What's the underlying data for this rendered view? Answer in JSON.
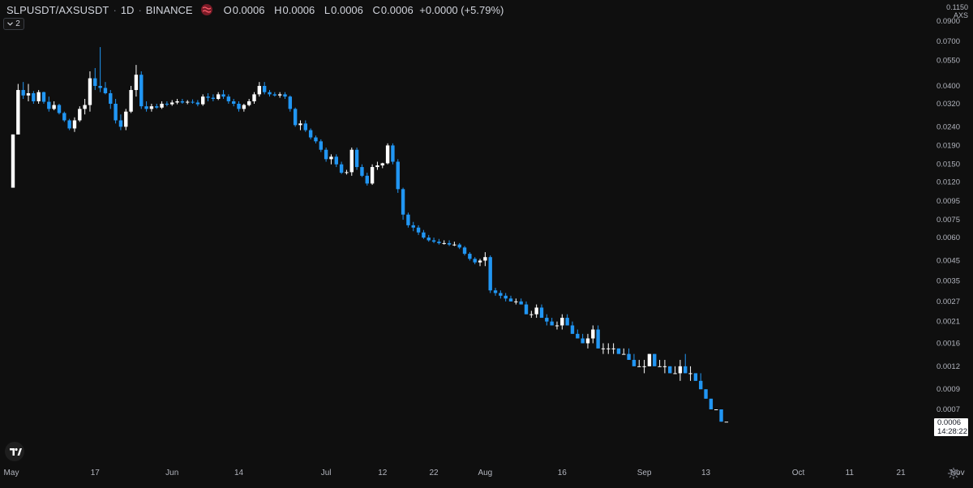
{
  "header": {
    "symbol": "SLPUSDT/AXSUSDT",
    "interval": "1D",
    "exchange": "BINANCE",
    "separator": "·",
    "ohlc": {
      "o_label": "O",
      "o_value": "0.0006",
      "h_label": "H",
      "h_value": "0.0006",
      "l_label": "L",
      "l_value": "0.0006",
      "c_label": "C",
      "c_value": "0.0006",
      "change": "+0.0000 (+5.79%)"
    },
    "collapse_count": "2"
  },
  "price_axis": {
    "unit_top": "0.1150",
    "unit_label": "AXS",
    "current_price": "0.0006",
    "countdown": "14:28:22"
  },
  "colors": {
    "background": "#0f0f0f",
    "up": "#ffffff",
    "down": "#2196f3",
    "text": "#d1d4dc"
  },
  "icons": {
    "market": "market-status-icon",
    "logo": "tradingview-logo-icon",
    "settings": "gear-icon",
    "collapse": "chevron-down-icon"
  },
  "chart_data": {
    "type": "candlestick",
    "title": "SLPUSDT/AXSUSDT",
    "subtitle": "1D · BINANCE",
    "xlabel": "",
    "ylabel": "AXS",
    "y_scale": "log",
    "grid": false,
    "legend": "top-left",
    "y_ticks": [
      "0.0900",
      "0.0700",
      "0.0550",
      "0.0400",
      "0.0320",
      "0.0240",
      "0.0190",
      "0.0150",
      "0.0120",
      "0.0095",
      "0.0075",
      "0.0060",
      "0.0045",
      "0.0035",
      "0.0027",
      "0.0021",
      "0.0016",
      "0.0012",
      "0.0009",
      "0.0007"
    ],
    "x_ticks": [
      {
        "label": "May",
        "day": 0
      },
      {
        "label": "17",
        "day": 16
      },
      {
        "label": "Jun",
        "day": 31
      },
      {
        "label": "14",
        "day": 44
      },
      {
        "label": "Jul",
        "day": 61
      },
      {
        "label": "12",
        "day": 72
      },
      {
        "label": "22",
        "day": 82
      },
      {
        "label": "Aug",
        "day": 92
      },
      {
        "label": "16",
        "day": 107
      },
      {
        "label": "Sep",
        "day": 123
      },
      {
        "label": "13",
        "day": 135
      },
      {
        "label": "Oct",
        "day": 153
      },
      {
        "label": "11",
        "day": 163
      },
      {
        "label": "21",
        "day": 173
      },
      {
        "label": "Nov",
        "day": 184
      }
    ],
    "first_date": "May 1",
    "candles": [
      [
        0.0112,
        0.0218,
        0.0112,
        0.0218
      ],
      [
        0.0218,
        0.041,
        0.0218,
        0.038
      ],
      [
        0.038,
        0.042,
        0.034,
        0.0355
      ],
      [
        0.0355,
        0.041,
        0.033,
        0.0365
      ],
      [
        0.0365,
        0.0375,
        0.032,
        0.033
      ],
      [
        0.033,
        0.038,
        0.032,
        0.037
      ],
      [
        0.037,
        0.0372,
        0.032,
        0.0328
      ],
      [
        0.0328,
        0.035,
        0.029,
        0.03
      ],
      [
        0.03,
        0.033,
        0.0295,
        0.0315
      ],
      [
        0.0315,
        0.032,
        0.028,
        0.0285
      ],
      [
        0.0285,
        0.029,
        0.0255,
        0.026
      ],
      [
        0.026,
        0.0265,
        0.023,
        0.0235
      ],
      [
        0.0235,
        0.027,
        0.0225,
        0.026
      ],
      [
        0.026,
        0.031,
        0.0255,
        0.03
      ],
      [
        0.03,
        0.034,
        0.028,
        0.0315
      ],
      [
        0.0315,
        0.048,
        0.029,
        0.044
      ],
      [
        0.044,
        0.05,
        0.038,
        0.04
      ],
      [
        0.04,
        0.065,
        0.037,
        0.039
      ],
      [
        0.039,
        0.042,
        0.036,
        0.0365
      ],
      [
        0.0365,
        0.038,
        0.03,
        0.032
      ],
      [
        0.032,
        0.034,
        0.025,
        0.026
      ],
      [
        0.026,
        0.028,
        0.023,
        0.024
      ],
      [
        0.024,
        0.03,
        0.023,
        0.029
      ],
      [
        0.029,
        0.04,
        0.0285,
        0.038
      ],
      [
        0.038,
        0.052,
        0.035,
        0.046
      ],
      [
        0.046,
        0.048,
        0.03,
        0.031
      ],
      [
        0.031,
        0.033,
        0.029,
        0.03
      ],
      [
        0.03,
        0.032,
        0.029,
        0.031
      ],
      [
        0.031,
        0.032,
        0.03,
        0.0305
      ],
      [
        0.0305,
        0.033,
        0.03,
        0.032
      ],
      [
        0.032,
        0.033,
        0.031,
        0.0318
      ],
      [
        0.0318,
        0.0335,
        0.0312,
        0.0325
      ],
      [
        0.0325,
        0.034,
        0.0318,
        0.033
      ],
      [
        0.033,
        0.034,
        0.032,
        0.0325
      ],
      [
        0.0325,
        0.0335,
        0.0318,
        0.0328
      ],
      [
        0.0328,
        0.0338,
        0.032,
        0.0325
      ],
      [
        0.0325,
        0.0335,
        0.031,
        0.0318
      ],
      [
        0.0318,
        0.036,
        0.0312,
        0.035
      ],
      [
        0.035,
        0.0365,
        0.033,
        0.0345
      ],
      [
        0.0345,
        0.036,
        0.033,
        0.034
      ],
      [
        0.034,
        0.037,
        0.0335,
        0.036
      ],
      [
        0.036,
        0.038,
        0.034,
        0.035
      ],
      [
        0.035,
        0.036,
        0.032,
        0.033
      ],
      [
        0.033,
        0.034,
        0.031,
        0.032
      ],
      [
        0.032,
        0.033,
        0.029,
        0.03
      ],
      [
        0.03,
        0.032,
        0.029,
        0.0315
      ],
      [
        0.0315,
        0.034,
        0.031,
        0.033
      ],
      [
        0.033,
        0.037,
        0.032,
        0.036
      ],
      [
        0.036,
        0.042,
        0.035,
        0.04
      ],
      [
        0.04,
        0.042,
        0.036,
        0.037
      ],
      [
        0.037,
        0.038,
        0.035,
        0.036
      ],
      [
        0.036,
        0.037,
        0.035,
        0.0355
      ],
      [
        0.0355,
        0.037,
        0.0345,
        0.036
      ],
      [
        0.036,
        0.037,
        0.034,
        0.035
      ],
      [
        0.035,
        0.0355,
        0.029,
        0.03
      ],
      [
        0.03,
        0.0305,
        0.024,
        0.0245
      ],
      [
        0.0245,
        0.026,
        0.023,
        0.025
      ],
      [
        0.025,
        0.026,
        0.0225,
        0.023
      ],
      [
        0.023,
        0.0235,
        0.0205,
        0.021
      ],
      [
        0.021,
        0.0215,
        0.0195,
        0.02
      ],
      [
        0.02,
        0.0205,
        0.0175,
        0.018
      ],
      [
        0.018,
        0.0185,
        0.0155,
        0.016
      ],
      [
        0.016,
        0.017,
        0.015,
        0.0165
      ],
      [
        0.0165,
        0.017,
        0.0145,
        0.015
      ],
      [
        0.015,
        0.0155,
        0.0133,
        0.0135
      ],
      [
        0.0135,
        0.014,
        0.0132,
        0.0136
      ],
      [
        0.0136,
        0.0185,
        0.013,
        0.018
      ],
      [
        0.018,
        0.0185,
        0.014,
        0.0145
      ],
      [
        0.0145,
        0.015,
        0.0128,
        0.013
      ],
      [
        0.013,
        0.0135,
        0.0115,
        0.0118
      ],
      [
        0.0118,
        0.015,
        0.0116,
        0.0145
      ],
      [
        0.0145,
        0.0155,
        0.014,
        0.0148
      ],
      [
        0.0148,
        0.0153,
        0.0143,
        0.0152
      ],
      [
        0.0152,
        0.0195,
        0.015,
        0.019
      ],
      [
        0.019,
        0.0195,
        0.015,
        0.0155
      ],
      [
        0.0155,
        0.016,
        0.0105,
        0.011
      ],
      [
        0.011,
        0.0112,
        0.0075,
        0.008
      ],
      [
        0.008,
        0.0082,
        0.0068,
        0.007
      ],
      [
        0.007,
        0.0073,
        0.0065,
        0.0068
      ],
      [
        0.0068,
        0.007,
        0.0062,
        0.0064
      ],
      [
        0.0064,
        0.0066,
        0.0059,
        0.006
      ],
      [
        0.006,
        0.0062,
        0.0057,
        0.0058
      ],
      [
        0.0058,
        0.006,
        0.0056,
        0.0057
      ],
      [
        0.0057,
        0.0059,
        0.0055,
        0.0056
      ],
      [
        0.0056,
        0.0058,
        0.0055,
        0.0056
      ],
      [
        0.0056,
        0.0058,
        0.0054,
        0.0055
      ],
      [
        0.0055,
        0.0057,
        0.0054,
        0.0055
      ],
      [
        0.0055,
        0.0056,
        0.0052,
        0.0053
      ],
      [
        0.0053,
        0.0054,
        0.0048,
        0.0049
      ],
      [
        0.0049,
        0.005,
        0.0045,
        0.0046
      ],
      [
        0.0046,
        0.0047,
        0.0043,
        0.0044
      ],
      [
        0.0044,
        0.0046,
        0.0042,
        0.0045
      ],
      [
        0.0045,
        0.005,
        0.0042,
        0.0047
      ],
      [
        0.0047,
        0.0048,
        0.003,
        0.0031
      ],
      [
        0.0031,
        0.0032,
        0.0029,
        0.003
      ],
      [
        0.003,
        0.0031,
        0.0028,
        0.0029
      ],
      [
        0.0029,
        0.003,
        0.0027,
        0.0028
      ],
      [
        0.0028,
        0.0029,
        0.0027,
        0.0027
      ],
      [
        0.0027,
        0.0028,
        0.0026,
        0.0027
      ],
      [
        0.0027,
        0.0028,
        0.0026,
        0.0026
      ],
      [
        0.0026,
        0.0027,
        0.0023,
        0.0023
      ],
      [
        0.0023,
        0.0024,
        0.0022,
        0.0023
      ],
      [
        0.0023,
        0.0026,
        0.0022,
        0.0025
      ],
      [
        0.0025,
        0.0026,
        0.0022,
        0.0022
      ],
      [
        0.0022,
        0.0023,
        0.002,
        0.0021
      ],
      [
        0.0021,
        0.0022,
        0.002,
        0.002
      ],
      [
        0.002,
        0.0021,
        0.0019,
        0.002
      ],
      [
        0.002,
        0.0023,
        0.0019,
        0.0022
      ],
      [
        0.0022,
        0.0023,
        0.002,
        0.002
      ],
      [
        0.002,
        0.0021,
        0.0018,
        0.0018
      ],
      [
        0.0018,
        0.0019,
        0.0017,
        0.0017
      ],
      [
        0.0017,
        0.0018,
        0.0016,
        0.0016
      ],
      [
        0.0016,
        0.0018,
        0.0015,
        0.0017
      ],
      [
        0.0017,
        0.002,
        0.0016,
        0.0019
      ],
      [
        0.0019,
        0.002,
        0.0015,
        0.0015
      ],
      [
        0.0015,
        0.0016,
        0.0014,
        0.0015
      ],
      [
        0.0015,
        0.0016,
        0.0014,
        0.0015
      ],
      [
        0.0015,
        0.0016,
        0.0014,
        0.0015
      ],
      [
        0.0015,
        0.0015,
        0.0014,
        0.0014
      ],
      [
        0.0014,
        0.0015,
        0.0014,
        0.0014
      ],
      [
        0.0014,
        0.0015,
        0.0013,
        0.0013
      ],
      [
        0.0013,
        0.0014,
        0.0012,
        0.0012
      ],
      [
        0.0012,
        0.0013,
        0.0012,
        0.0012
      ],
      [
        0.0012,
        0.0013,
        0.0011,
        0.0012
      ],
      [
        0.0012,
        0.0014,
        0.0012,
        0.0014
      ],
      [
        0.0014,
        0.0014,
        0.0012,
        0.0012
      ],
      [
        0.0012,
        0.0013,
        0.0012,
        0.0012
      ],
      [
        0.0012,
        0.0013,
        0.0011,
        0.0012
      ],
      [
        0.0012,
        0.0012,
        0.0011,
        0.0011
      ],
      [
        0.0011,
        0.0012,
        0.0011,
        0.0011
      ],
      [
        0.0011,
        0.0013,
        0.001,
        0.0012
      ],
      [
        0.0012,
        0.0014,
        0.0011,
        0.0011
      ],
      [
        0.0011,
        0.0012,
        0.001,
        0.0011
      ],
      [
        0.0011,
        0.0011,
        0.001,
        0.001
      ],
      [
        0.001,
        0.0011,
        0.0009,
        0.0009
      ],
      [
        0.0009,
        0.0009,
        0.0008,
        0.0008
      ],
      [
        0.0008,
        0.0008,
        0.0007,
        0.0007
      ],
      [
        0.0007,
        0.0007,
        0.0007,
        0.0007
      ],
      [
        0.0007,
        0.0007,
        0.0006,
        0.0006
      ],
      [
        0.0006,
        0.0006,
        0.0006,
        0.0006
      ]
    ]
  }
}
